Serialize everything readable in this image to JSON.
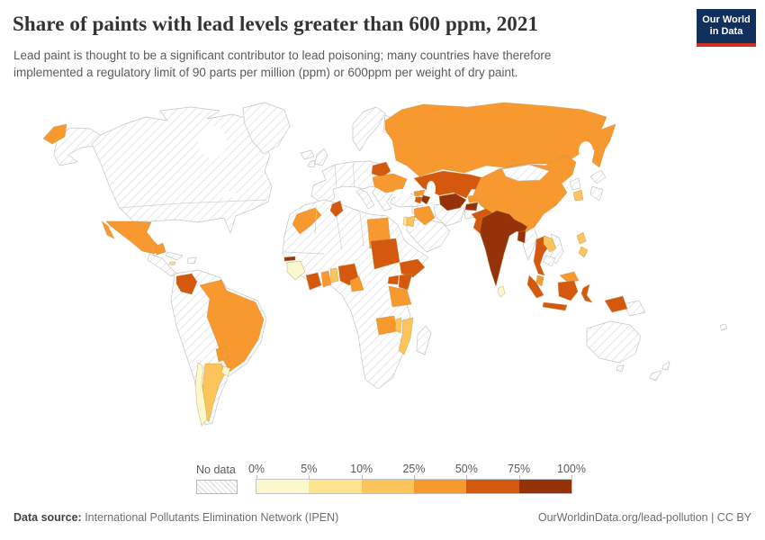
{
  "header": {
    "title": "Share of paints with lead levels greater than 600 ppm, 2021",
    "subtitle": "Lead paint is thought to be a significant contributor to lead poisoning; many countries have therefore implemented a regulatory limit of 90 parts per million (ppm) or 600ppm per weight of dry paint."
  },
  "logo": {
    "line1": "Our World",
    "line2": "in Data",
    "bg_color": "#12305c",
    "accent_color": "#cf3122"
  },
  "legend": {
    "no_data_label": "No data",
    "tick_labels": [
      "0%",
      "5%",
      "10%",
      "25%",
      "50%",
      "75%",
      "100%"
    ],
    "bin_labels": [
      "0-5%",
      "5-10%",
      "10-25%",
      "25-50%",
      "50-75%",
      "75-100%"
    ],
    "bin_colors": [
      "#fcf8cd",
      "#fee391",
      "#fbc55c",
      "#f8992f",
      "#d4590e",
      "#943309"
    ]
  },
  "footer": {
    "source_label": "Data source:",
    "source_value": " International Pollutants Elimination Network (IPEN)",
    "right_text": "OurWorldinData.org/lead-pollution | CC BY"
  },
  "map": {
    "year": "2021",
    "country_bins": {
      "chukotka-russia": 3,
      "russia": 3,
      "belarus": 4,
      "ukraine": 3,
      "kazakhstan": 4,
      "uzbekistan": 5,
      "kyrgyzstan": 3,
      "tajikistan": 5,
      "georgia": 3,
      "armenia": 4,
      "azerbaijan": 5,
      "iraq": 3,
      "jordan": 2,
      "israel": 1,
      "china": 3,
      "south-korea": 2,
      "nepal": 3,
      "bhutan": 2,
      "india": 5,
      "pakistan": 4,
      "sri-lanka": 0,
      "bangladesh": 5,
      "thailand": 4,
      "laos": 2,
      "philippines-north": 2,
      "philippines-south": 2,
      "malaysia-peninsula": 3,
      "malaysia-borneo": 3,
      "indonesia-sumatra": 4,
      "indonesia-java": 4,
      "indonesia-kalimantan": 4,
      "indonesia-sulawesi": 4,
      "indonesia-papua": 4,
      "morocco": 3,
      "tunisia": 4,
      "egypt": 3,
      "gambia": 5,
      "guinea": 0,
      "cote-divoire": 4,
      "ghana": 3,
      "benin-togo": 2,
      "nigeria": 4,
      "cameroon": 3,
      "sudan": 4,
      "ethiopia": 4,
      "uganda": 4,
      "kenya": 4,
      "tanzania": 3,
      "zambia": 3,
      "malawi": 2,
      "mozambique": 2,
      "mexico": 3,
      "mexico-baja": 3,
      "mexico-yucatan": 3,
      "jamaica": 1,
      "colombia": 4,
      "brazil": 3,
      "paraguay": 3,
      "argentina": 2,
      "chile": 0,
      "uruguay": 0
    }
  }
}
